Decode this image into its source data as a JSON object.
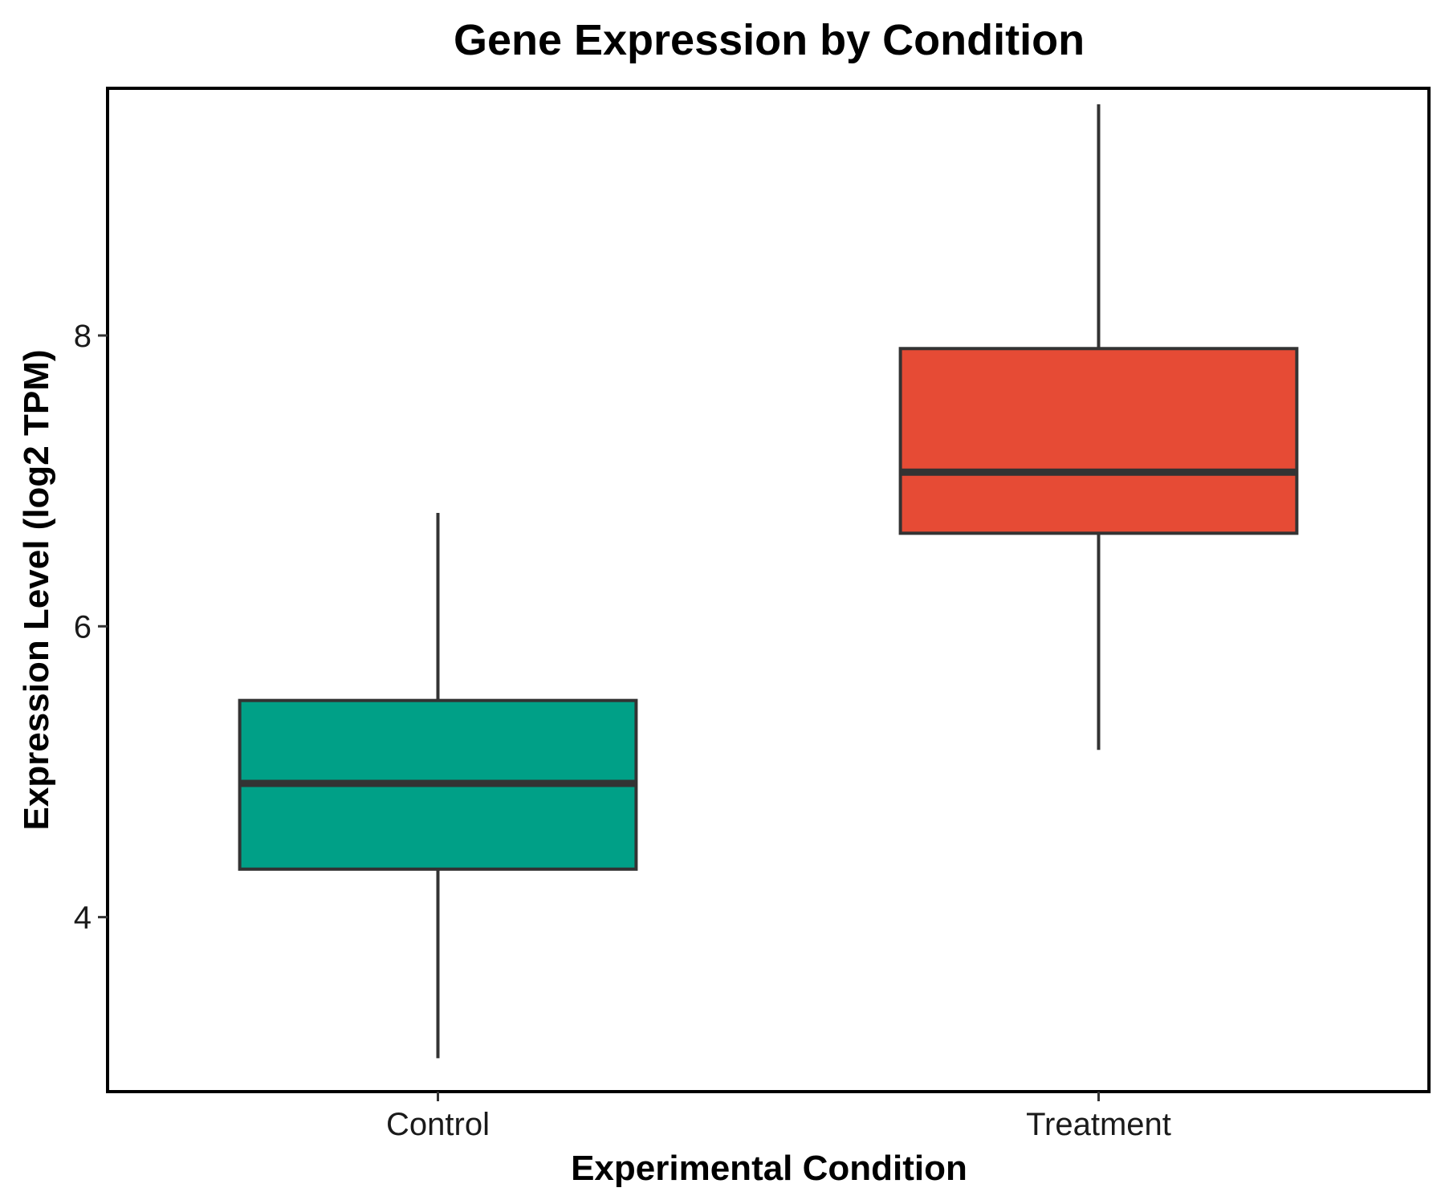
{
  "chart_data": {
    "type": "boxplot",
    "title": "Gene Expression by Condition",
    "xlabel": "Experimental Condition",
    "ylabel": "Expression Level (log2 TPM)",
    "categories": [
      "Control",
      "Treatment"
    ],
    "ylim": [
      2.8,
      9.7
    ],
    "yticks": [
      4,
      6,
      8
    ],
    "grid": false,
    "legend": "none",
    "boxes": [
      {
        "category": "Control",
        "whisker_low": 3.03,
        "q1": 4.33,
        "median": 4.92,
        "q3": 5.49,
        "whisker_high": 6.78,
        "color": "#00A087"
      },
      {
        "category": "Treatment",
        "whisker_low": 5.15,
        "q1": 6.64,
        "median": 7.06,
        "q3": 7.91,
        "whisker_high": 9.59,
        "color": "#E64B35"
      }
    ],
    "outline_color": "#333333"
  }
}
